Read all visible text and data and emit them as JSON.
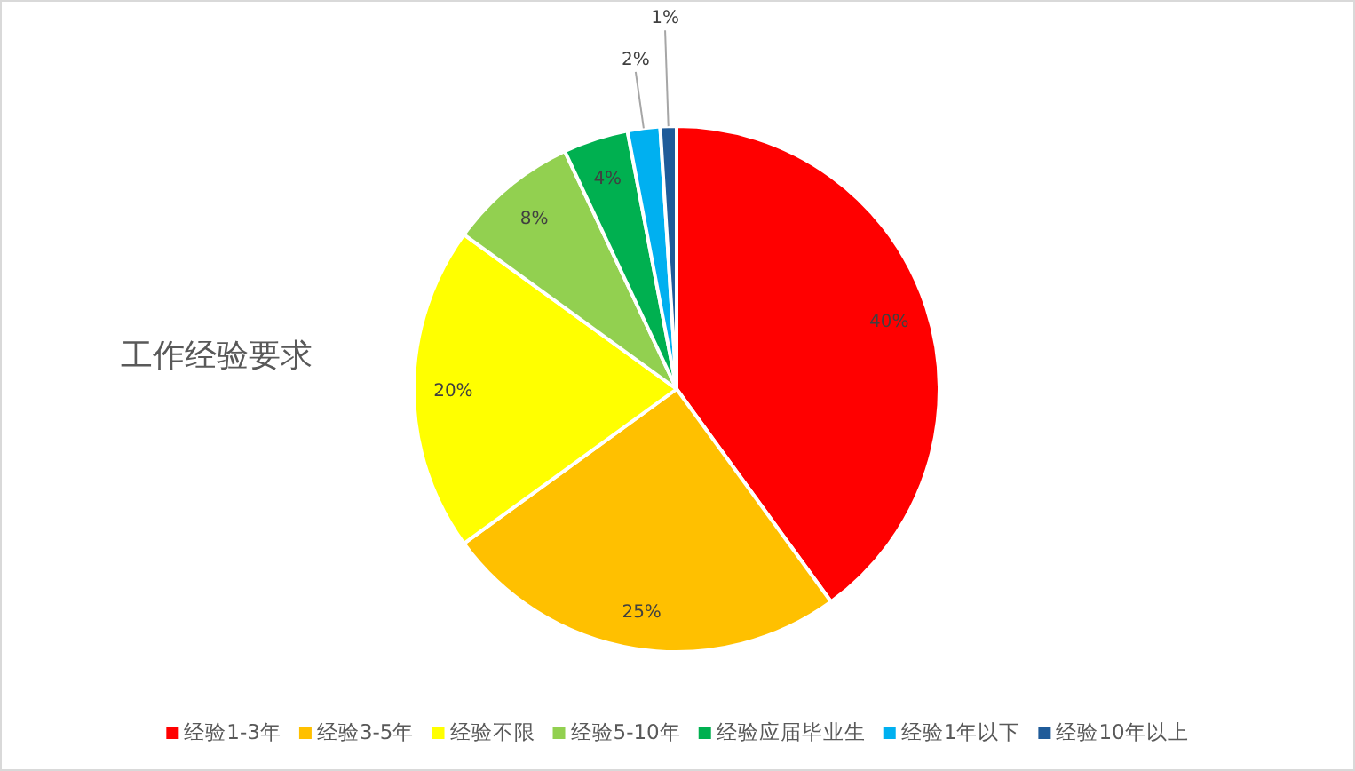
{
  "chart_data": {
    "type": "pie",
    "title": "工作经验要求",
    "legend": "bottom",
    "categories": [
      "经验1-3年",
      "经验3-5年",
      "经验不限",
      "经验5-10年",
      "经验应届毕业生",
      "经验1年以下",
      "经验10年以上"
    ],
    "values": [
      40,
      25,
      20,
      8,
      4,
      2,
      1
    ],
    "value_labels": [
      "40%",
      "25%",
      "20%",
      "8%",
      "4%",
      "2%",
      "1%"
    ],
    "colors": [
      "#ff0000",
      "#ffc000",
      "#ffff00",
      "#92d050",
      "#00b050",
      "#00b0f0",
      "#1f5b99"
    ]
  }
}
